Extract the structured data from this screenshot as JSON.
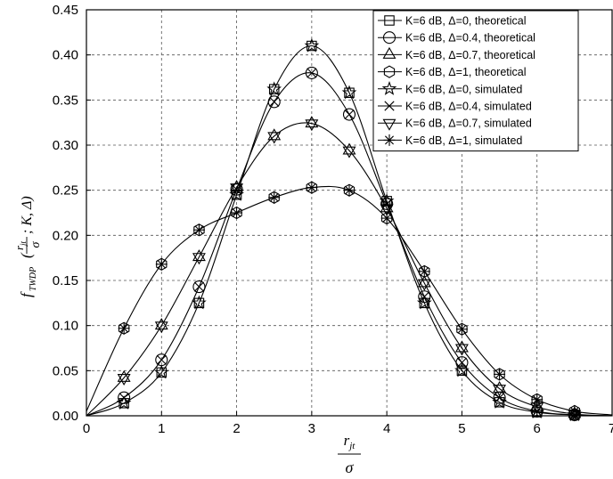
{
  "chart_data": {
    "type": "line",
    "title": "",
    "xlabel": {
      "var": "r",
      "sub": "jt",
      "den": "σ"
    },
    "ylabel": {
      "f": "f",
      "sub": "TWDP",
      "num": "r",
      "numsub": "jt",
      "den": "σ",
      "rest": "; K, Δ)"
    },
    "xlim": [
      0,
      7
    ],
    "ylim": [
      0,
      0.45
    ],
    "x_ticks": [
      "0",
      "1",
      "2",
      "3",
      "4",
      "5",
      "6",
      "7"
    ],
    "y_ticks": [
      "0.00",
      "0.05",
      "0.10",
      "0.15",
      "0.20",
      "0.25",
      "0.30",
      "0.35",
      "0.40",
      "0.45"
    ],
    "grid": true,
    "legend_position": "top-right",
    "x": [
      0,
      0.5,
      1,
      1.5,
      2,
      2.5,
      3,
      3.5,
      4,
      4.5,
      5,
      5.5,
      6,
      6.5,
      7
    ],
    "series": [
      {
        "name": "K=6 dB, Δ=0, theoretical",
        "marker": "square",
        "values": [
          0.0,
          0.014,
          0.048,
          0.125,
          0.245,
          0.362,
          0.41,
          0.358,
          0.238,
          0.125,
          0.05,
          0.015,
          0.004,
          0.001,
          0.0
        ]
      },
      {
        "name": "K=6 dB, Δ=0.4, theoretical",
        "marker": "circle",
        "values": [
          0.0,
          0.02,
          0.062,
          0.143,
          0.251,
          0.348,
          0.38,
          0.334,
          0.235,
          0.132,
          0.059,
          0.02,
          0.005,
          0.001,
          0.0
        ]
      },
      {
        "name": "K=6 dB, Δ=0.7, theoretical",
        "marker": "triangle-up",
        "values": [
          0.0,
          0.042,
          0.1,
          0.176,
          0.253,
          0.31,
          0.324,
          0.294,
          0.23,
          0.147,
          0.075,
          0.03,
          0.01,
          0.002,
          0.0
        ]
      },
      {
        "name": "K=6 dB, Δ=1, theoretical",
        "marker": "hexagon",
        "values": [
          0.005,
          0.097,
          0.168,
          0.206,
          0.225,
          0.242,
          0.253,
          0.25,
          0.219,
          0.16,
          0.096,
          0.046,
          0.018,
          0.005,
          0.001
        ]
      },
      {
        "name": "K=6 dB, Δ=0, simulated",
        "marker": "star",
        "values": [
          0.0,
          0.014,
          0.048,
          0.125,
          0.245,
          0.362,
          0.41,
          0.358,
          0.238,
          0.125,
          0.05,
          0.015,
          0.004,
          0.001,
          0.0
        ]
      },
      {
        "name": "K=6 dB, Δ=0.4, simulated",
        "marker": "x",
        "values": [
          0.0,
          0.02,
          0.062,
          0.143,
          0.251,
          0.348,
          0.38,
          0.334,
          0.235,
          0.132,
          0.059,
          0.02,
          0.005,
          0.001,
          0.0
        ]
      },
      {
        "name": "K=6 dB, Δ=0.7, simulated",
        "marker": "triangle-down",
        "values": [
          0.0,
          0.042,
          0.1,
          0.176,
          0.253,
          0.31,
          0.324,
          0.294,
          0.23,
          0.147,
          0.075,
          0.03,
          0.01,
          0.002,
          0.0
        ]
      },
      {
        "name": "K=6 dB, Δ=1, simulated",
        "marker": "asterisk",
        "values": [
          0.005,
          0.097,
          0.168,
          0.206,
          0.225,
          0.242,
          0.253,
          0.25,
          0.219,
          0.16,
          0.096,
          0.046,
          0.018,
          0.005,
          0.001
        ]
      }
    ]
  }
}
